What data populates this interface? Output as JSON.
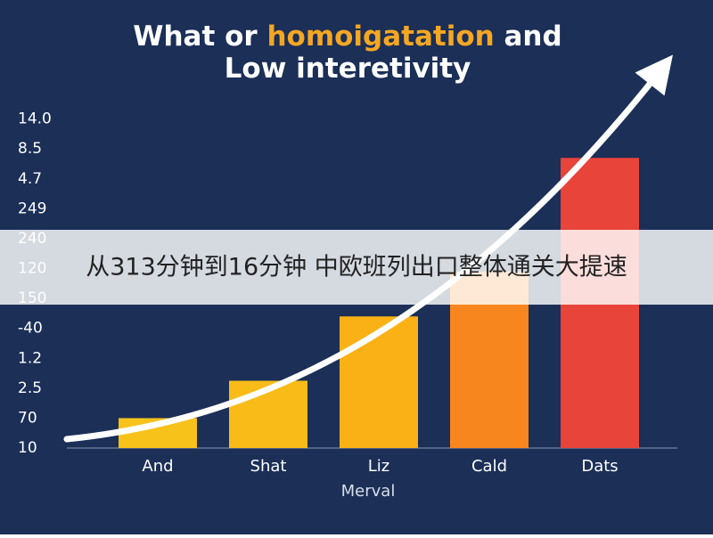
{
  "chart_data": {
    "type": "bar",
    "title": [
      [
        "What or ",
        "homoigatation",
        " and"
      ],
      [
        "Low interetivity"
      ]
    ],
    "title_color": "#ffffff",
    "title_highlight_color": "#f5a623",
    "y_axis_labels": [
      "14.0",
      "8.5",
      "4.7",
      "249",
      "240",
      "120",
      "150",
      "-40",
      "1.2",
      "2.5",
      "70",
      "10"
    ],
    "categories": [
      "And",
      "Shat",
      "Liz",
      "Cald",
      "Dats"
    ],
    "values": [
      1.0,
      2.25,
      4.4,
      5.9,
      9.7
    ],
    "colors": [
      "#f7c21a",
      "#f8bb18",
      "#f9b115",
      "#f7861f",
      "#e8443a"
    ],
    "ylim": [
      0,
      11
    ],
    "xlabel": "Merval"
  },
  "banner": {
    "text": "从313分钟到16分钟 中欧班列出口整体通关大提速"
  }
}
